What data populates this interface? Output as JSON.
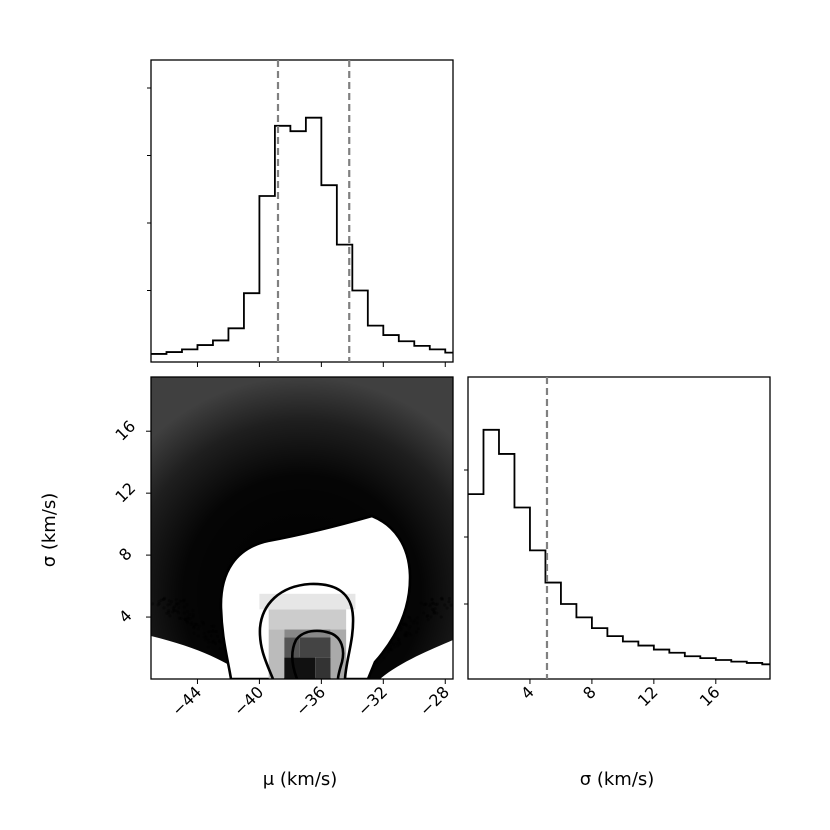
{
  "chart_data": [
    {
      "panel": "mu-histogram",
      "type": "histogram",
      "x_range": [
        -47,
        -27.5
      ],
      "y_range": [
        0,
        1.0
      ],
      "bin_edges": [
        -47,
        -46,
        -45,
        -44,
        -43,
        -42,
        -41,
        -40,
        -39,
        -38,
        -37,
        -36,
        -35,
        -34,
        -33,
        -32,
        -31,
        -30,
        -29,
        -28,
        -27.5
      ],
      "counts": [
        0.015,
        0.022,
        0.032,
        0.048,
        0.065,
        0.11,
        0.24,
        0.6,
        0.86,
        0.84,
        0.89,
        0.64,
        0.42,
        0.25,
        0.12,
        0.085,
        0.062,
        0.045,
        0.032,
        0.02
      ],
      "quantile_lines": [
        -38.8,
        -34.2
      ],
      "y_ticks": [
        0.25,
        0.5,
        0.75,
        1.0
      ]
    },
    {
      "panel": "mu-sigma-2d",
      "type": "scatter-density",
      "x_range": [
        -47,
        -27.5
      ],
      "y_range": [
        0,
        19.5
      ],
      "x_ticks": [
        -44,
        -40,
        -36,
        -32,
        -28
      ],
      "y_ticks": [
        4,
        8,
        12,
        16
      ],
      "xlabel": "μ (km/s)",
      "ylabel": "σ (km/s)"
    },
    {
      "panel": "sigma-histogram",
      "type": "histogram",
      "x_range": [
        0,
        19.5
      ],
      "y_range": [
        0,
        1.0
      ],
      "bin_edges": [
        0,
        1,
        2,
        3,
        4,
        5,
        6,
        7,
        8,
        9,
        10,
        11,
        12,
        13,
        14,
        15,
        16,
        17,
        18,
        19,
        19.5
      ],
      "counts": [
        0.66,
        0.9,
        0.81,
        0.61,
        0.45,
        0.33,
        0.25,
        0.2,
        0.16,
        0.13,
        0.11,
        0.095,
        0.08,
        0.068,
        0.055,
        0.048,
        0.041,
        0.035,
        0.03,
        0.025
      ],
      "quantile_lines": [
        5.1
      ],
      "x_ticks": [
        4,
        8,
        12,
        16
      ],
      "y_ticks": [
        0.25,
        0.5,
        0.75
      ],
      "xlabel": "σ (km/s)"
    }
  ]
}
